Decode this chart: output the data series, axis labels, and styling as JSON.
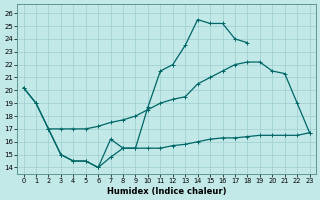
{
  "xlabel": "Humidex (Indice chaleur)",
  "bg_color": "#c2e8e8",
  "line_color": "#006666",
  "grid_color": "#9ecece",
  "xlim": [
    -0.5,
    23.5
  ],
  "ylim": [
    13.5,
    26.7
  ],
  "yticks": [
    14,
    15,
    16,
    17,
    18,
    19,
    20,
    21,
    22,
    23,
    24,
    25,
    26
  ],
  "xticks": [
    0,
    1,
    2,
    3,
    4,
    5,
    6,
    7,
    8,
    9,
    10,
    11,
    12,
    13,
    14,
    15,
    16,
    17,
    18,
    19,
    20,
    21,
    22,
    23
  ],
  "line1_x": [
    0,
    1,
    2,
    3,
    4,
    5,
    6,
    7,
    8,
    9,
    10,
    11,
    12,
    13,
    14,
    15,
    16,
    17,
    18,
    19,
    20,
    21,
    22,
    23
  ],
  "line1_y": [
    20.2,
    19.0,
    17.0,
    17.0,
    17.0,
    17.0,
    17.2,
    17.5,
    17.7,
    18.0,
    18.5,
    19.0,
    19.3,
    19.5,
    20.5,
    21.0,
    21.5,
    22.0,
    22.2,
    22.2,
    21.5,
    21.3,
    19.0,
    16.7
  ],
  "line2_x": [
    0,
    1,
    2,
    3,
    4,
    5,
    6,
    7,
    8,
    9,
    10,
    11,
    12,
    13,
    14,
    15,
    16,
    17,
    18,
    19,
    20,
    21,
    22,
    23
  ],
  "line2_y": [
    20.2,
    19.0,
    17.0,
    15.0,
    14.5,
    14.5,
    14.0,
    16.2,
    15.5,
    15.5,
    18.7,
    21.5,
    22.0,
    23.5,
    25.5,
    25.2,
    25.2,
    24.0,
    23.7,
    null,
    null,
    null,
    null,
    null
  ],
  "line3_x": [
    2,
    3,
    4,
    5,
    6,
    7,
    8,
    9,
    10,
    11,
    12,
    13,
    14,
    15,
    16,
    17,
    18,
    19,
    20,
    21,
    22,
    23
  ],
  "line3_y": [
    17.0,
    15.0,
    14.5,
    14.5,
    14.0,
    14.8,
    15.5,
    15.5,
    15.5,
    15.5,
    15.7,
    15.8,
    16.0,
    16.2,
    16.3,
    16.3,
    16.4,
    16.5,
    16.5,
    16.5,
    16.5,
    16.7
  ]
}
